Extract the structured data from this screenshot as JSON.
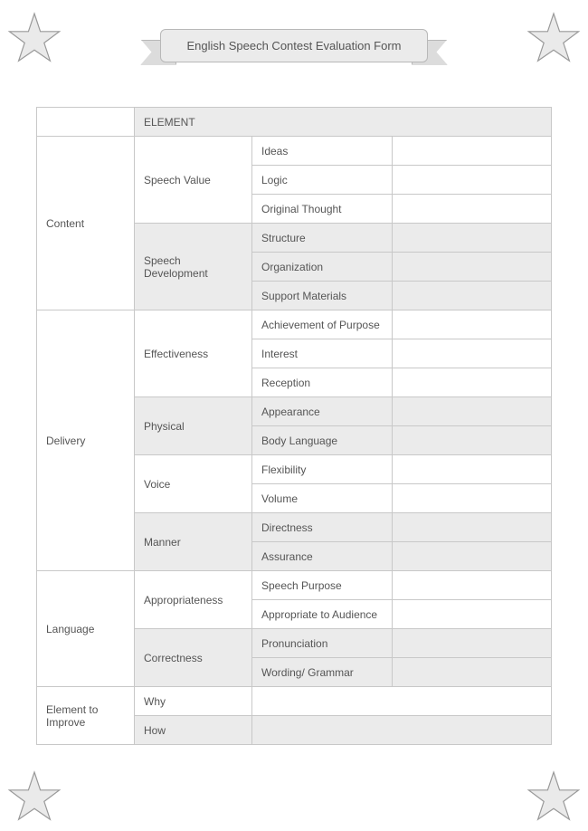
{
  "title": "English Speech Contest Evaluation Form",
  "colors": {
    "banner_fill": "#ebebeb",
    "banner_tail": "#dcdcdc",
    "border": "#b8b8b8",
    "table_border": "#c8c8c8",
    "shaded_row": "#ebebeb",
    "text": "#555555",
    "star_fill": "#eaeaea",
    "star_stroke": "#999999",
    "background": "#ffffff"
  },
  "typography": {
    "title_fontsize": 13,
    "table_fontsize": 12,
    "font_family": "Arial"
  },
  "header": {
    "element": "ELEMENT"
  },
  "sections": [
    {
      "category": "Content",
      "groups": [
        {
          "subcategory": "Speech Value",
          "shaded": false,
          "items": [
            "Ideas",
            "Logic",
            "Original Thought"
          ]
        },
        {
          "subcategory": "Speech Development",
          "shaded": true,
          "items": [
            "Structure",
            "Organization",
            "Support Materials"
          ]
        }
      ]
    },
    {
      "category": "Delivery",
      "groups": [
        {
          "subcategory": "Effectiveness",
          "shaded": false,
          "items": [
            "Achievement of Purpose",
            "Interest",
            "Reception"
          ]
        },
        {
          "subcategory": "Physical",
          "shaded": true,
          "items": [
            "Appearance",
            "Body Language"
          ]
        },
        {
          "subcategory": "Voice",
          "shaded": false,
          "items": [
            "Flexibility",
            "Volume"
          ]
        },
        {
          "subcategory": "Manner",
          "shaded": true,
          "items": [
            "Directness",
            "Assurance"
          ]
        }
      ]
    },
    {
      "category": "Language",
      "groups": [
        {
          "subcategory": "Appropriateness",
          "shaded": false,
          "items": [
            "Speech Purpose",
            "Appropriate to Audience"
          ]
        },
        {
          "subcategory": "Correctness",
          "shaded": true,
          "items": [
            "Pronunciation",
            "Wording/ Grammar"
          ]
        }
      ]
    },
    {
      "category": "Element to Improve",
      "simple_rows": [
        {
          "label": "Why",
          "shaded": false
        },
        {
          "label": "How",
          "shaded": true
        }
      ]
    }
  ]
}
